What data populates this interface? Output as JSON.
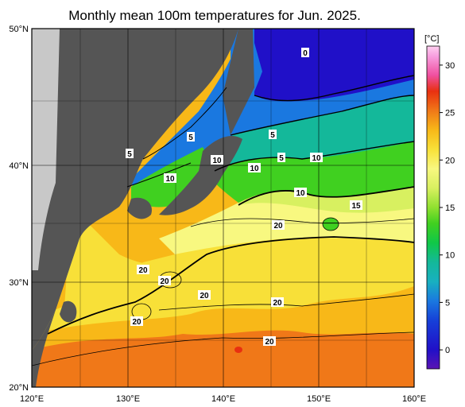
{
  "title": "Monthly mean 100m temperatures for Jun. 2025.",
  "lat_labels": [
    "50°N",
    "40°N",
    "30°N",
    "20°N"
  ],
  "lon_labels": [
    "120°E",
    "130°E",
    "140°E",
    "150°E",
    "160°E"
  ],
  "colorbar": {
    "unit": "[°C]",
    "tick_labels": [
      "30",
      "25",
      "20",
      "15",
      "10",
      "5",
      "0"
    ],
    "range": [
      -2,
      32
    ],
    "colors": {
      "c-2": "#5a14b4",
      "c0": "#2010c8",
      "c3": "#1640d8",
      "c5": "#1a78e0",
      "c7": "#18b0c0",
      "c9": "#14b89a",
      "c11": "#10c848",
      "c13": "#40d020",
      "c15": "#90e030",
      "c17": "#d8f060",
      "c19": "#f8f880",
      "c21": "#f8e038",
      "c23": "#f8b818",
      "c25": "#f07818",
      "c27": "#e83010",
      "c29": "#f050a0",
      "c31": "#f8a0e0",
      "c32": "#ffd0f0"
    }
  },
  "colors": {
    "land": "#555555",
    "outside_land": "#c8c8c8",
    "coast_strip": "#c8c8c8"
  },
  "isotherm_labels": [
    "0",
    "5",
    "5",
    "5",
    "5",
    "10",
    "10",
    "10",
    "10",
    "10",
    "15",
    "20",
    "20",
    "20",
    "20",
    "20",
    "20",
    "20"
  ]
}
